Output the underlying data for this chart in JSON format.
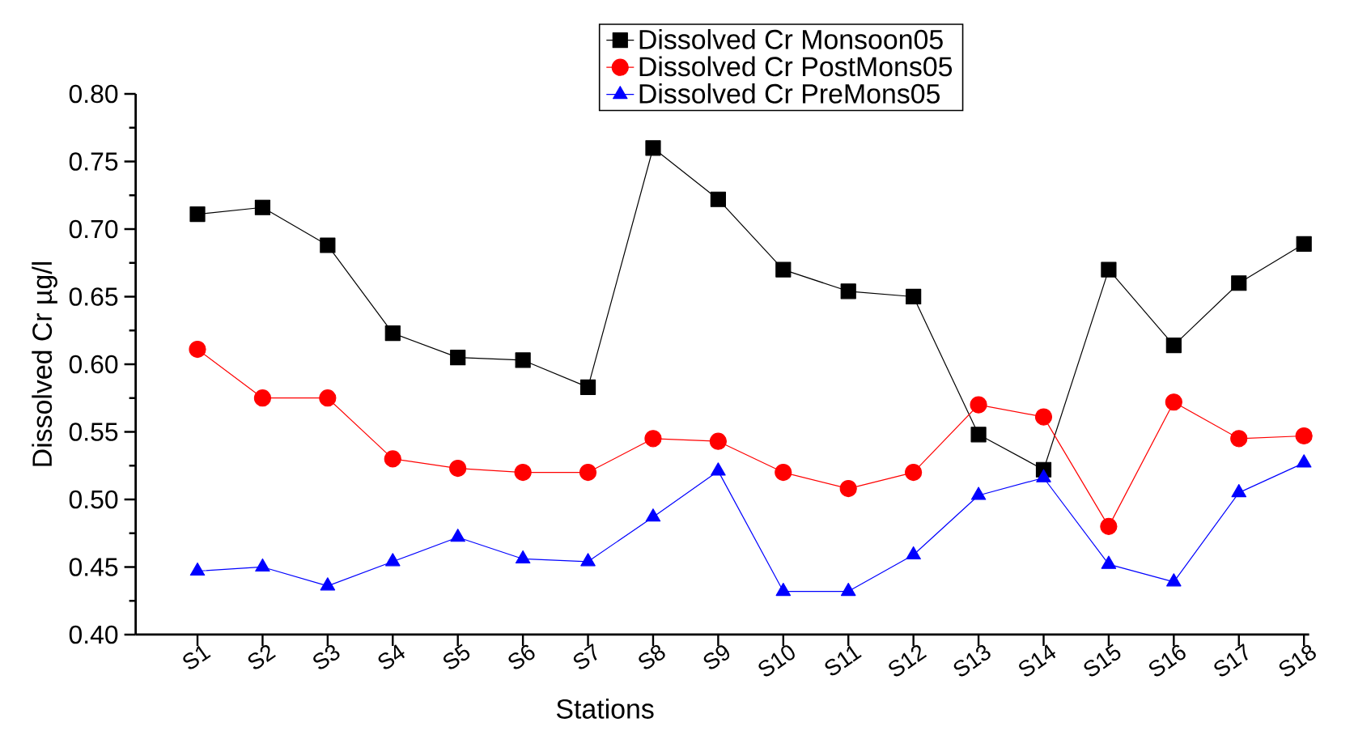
{
  "chart_data": {
    "type": "line",
    "xlabel": "Stations",
    "ylabel": "Dissolved Cr µg/l",
    "categories": [
      "S1",
      "S2",
      "S3",
      "S4",
      "S5",
      "S6",
      "S7",
      "S8",
      "S9",
      "S10",
      "S11",
      "S12",
      "S13",
      "S14",
      "S15",
      "S16",
      "S17",
      "S18"
    ],
    "ylim": [
      0.4,
      0.8
    ],
    "yticks": [
      {
        "value": 0.4,
        "label": "0.40"
      },
      {
        "value": 0.45,
        "label": "0.45"
      },
      {
        "value": 0.5,
        "label": "0.50"
      },
      {
        "value": 0.55,
        "label": "0.55"
      },
      {
        "value": 0.6,
        "label": "0.60"
      },
      {
        "value": 0.65,
        "label": "0.65"
      },
      {
        "value": 0.7,
        "label": "0.70"
      },
      {
        "value": 0.75,
        "label": "0.75"
      },
      {
        "value": 0.8,
        "label": "0.80"
      }
    ],
    "legend": "top",
    "grid": false,
    "line_style": "solid",
    "series": [
      {
        "name": "Dissolved Cr Monsoon05",
        "color": "#000000",
        "marker": "square",
        "values": [
          0.711,
          0.716,
          0.688,
          0.623,
          0.605,
          0.603,
          0.583,
          0.76,
          0.722,
          0.67,
          0.654,
          0.65,
          0.548,
          0.522,
          0.67,
          0.614,
          0.66,
          0.689
        ]
      },
      {
        "name": "Dissolved Cr PostMons05",
        "color": "#ff0000",
        "marker": "circle",
        "values": [
          0.611,
          0.575,
          0.575,
          0.53,
          0.523,
          0.52,
          0.52,
          0.545,
          0.543,
          0.52,
          0.508,
          0.52,
          0.57,
          0.561,
          0.48,
          0.572,
          0.545,
          0.547
        ]
      },
      {
        "name": "Dissolved Cr PreMons05",
        "color": "#0000ff",
        "marker": "triangle",
        "values": [
          0.447,
          0.45,
          0.436,
          0.454,
          0.472,
          0.456,
          0.454,
          0.487,
          0.521,
          0.432,
          0.432,
          0.459,
          0.503,
          0.516,
          0.452,
          0.439,
          0.505,
          0.527
        ]
      }
    ]
  }
}
